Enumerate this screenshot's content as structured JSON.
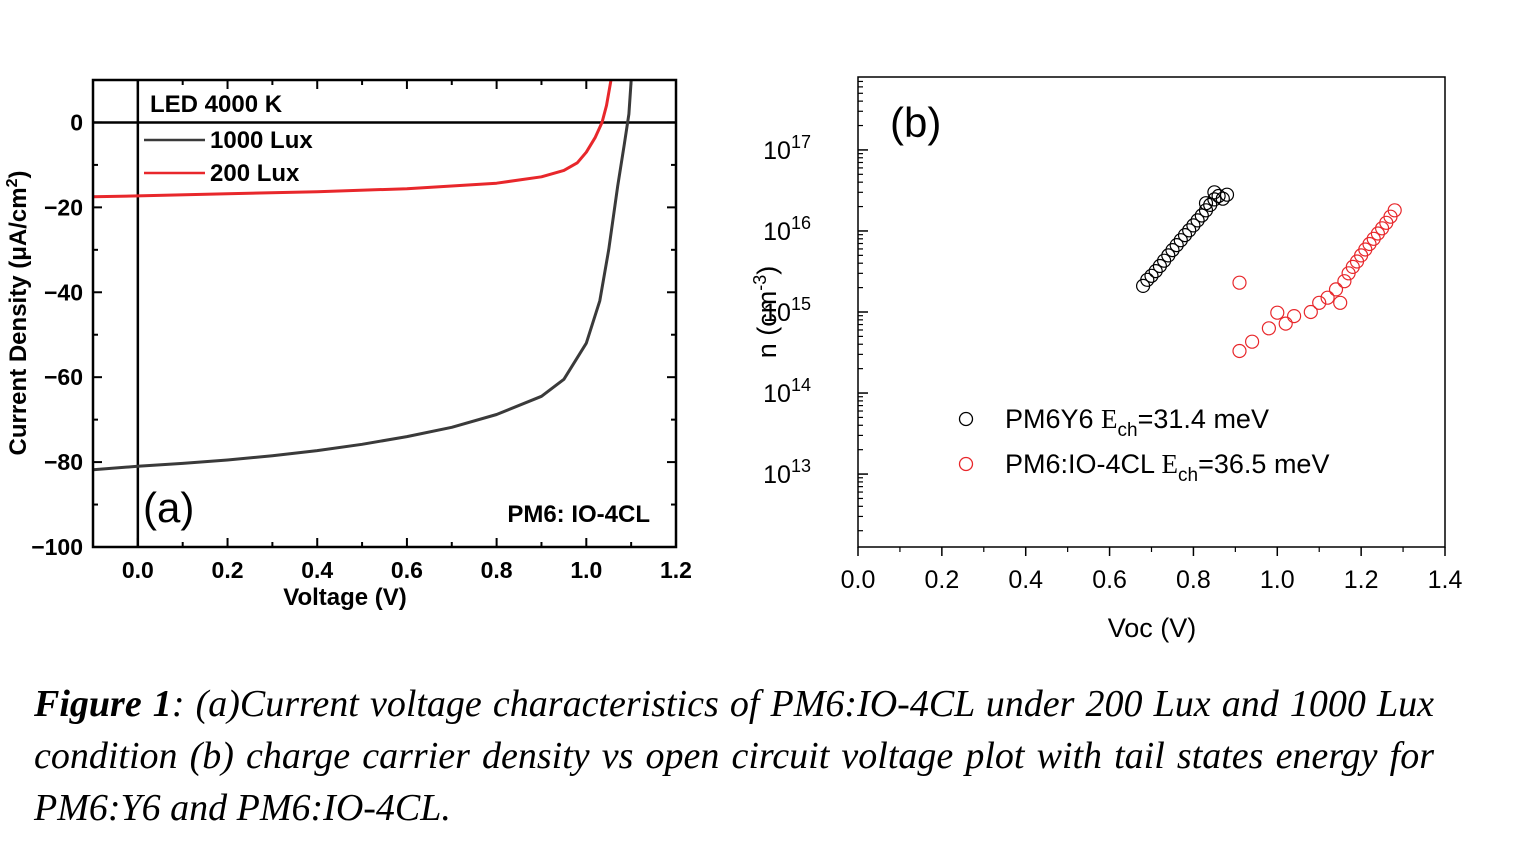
{
  "chart_data": [
    {
      "type": "line",
      "panel_label": "(a)",
      "xlabel": "Voltage (V)",
      "ylabel_prefix": "Current Density (",
      "ylabel_mu": "μ",
      "ylabel_unit": "A/cm",
      "ylabel_exp": "2",
      "ylabel_suffix": ")",
      "xlim": [
        -0.1,
        1.2
      ],
      "ylim": [
        -100,
        10
      ],
      "x_ticks": [
        "0.0",
        "0.2",
        "0.4",
        "0.6",
        "0.8",
        "1.0",
        "1.2"
      ],
      "y_ticks": [
        "0",
        "−20",
        "−40",
        "−60",
        "−80",
        "−100"
      ],
      "legend_title": "LED 4000 K",
      "annotation": "PM6: IO-4CL",
      "series": [
        {
          "name": "1000 Lux",
          "color": "#3a3a3a",
          "points": [
            [
              -0.1,
              -81.8
            ],
            [
              0.0,
              -81.0
            ],
            [
              0.1,
              -80.3
            ],
            [
              0.2,
              -79.5
            ],
            [
              0.3,
              -78.5
            ],
            [
              0.4,
              -77.3
            ],
            [
              0.5,
              -75.8
            ],
            [
              0.6,
              -74.0
            ],
            [
              0.7,
              -71.8
            ],
            [
              0.8,
              -68.8
            ],
            [
              0.9,
              -64.5
            ],
            [
              0.95,
              -60.5
            ],
            [
              1.0,
              -52.0
            ],
            [
              1.03,
              -42.0
            ],
            [
              1.05,
              -30.0
            ],
            [
              1.07,
              -15.0
            ],
            [
              1.085,
              -5.0
            ],
            [
              1.095,
              2.0
            ],
            [
              1.1,
              10.0
            ]
          ]
        },
        {
          "name": "200 Lux",
          "color": "#e8272b",
          "points": [
            [
              -0.1,
              -17.5
            ],
            [
              0.0,
              -17.3
            ],
            [
              0.2,
              -16.8
            ],
            [
              0.4,
              -16.3
            ],
            [
              0.6,
              -15.6
            ],
            [
              0.8,
              -14.3
            ],
            [
              0.9,
              -12.8
            ],
            [
              0.95,
              -11.3
            ],
            [
              0.98,
              -9.5
            ],
            [
              1.0,
              -7.0
            ],
            [
              1.02,
              -3.5
            ],
            [
              1.035,
              0.0
            ],
            [
              1.045,
              4.0
            ],
            [
              1.055,
              10.0
            ]
          ]
        }
      ]
    },
    {
      "type": "scatter",
      "panel_label": "(b)",
      "xlabel": "Voc (V)",
      "ylabel_prefix": "n (cm",
      "ylabel_exp": "-3",
      "ylabel_suffix": ")",
      "xlim": [
        0.0,
        1.4
      ],
      "ylog_exp_range": [
        12.1,
        17.9
      ],
      "y_scale": "log",
      "x_ticks": [
        "0.0",
        "0.2",
        "0.4",
        "0.6",
        "0.8",
        "1.0",
        "1.2",
        "1.4"
      ],
      "y_tick_exponents": [
        "13",
        "14",
        "15",
        "16",
        "17"
      ],
      "y_tick_base": "10",
      "series": [
        {
          "legend_name": "PM6Y6 ",
          "legend_E": "E",
          "legend_sub": "ch",
          "legend_value": "=31.4 meV",
          "color": "#000000",
          "points": [
            [
              0.68,
              2100000000000000.0
            ],
            [
              0.69,
              2500000000000000.0
            ],
            [
              0.7,
              2800000000000000.0
            ],
            [
              0.71,
              3200000000000000.0
            ],
            [
              0.72,
              3700000000000000.0
            ],
            [
              0.73,
              4300000000000000.0
            ],
            [
              0.74,
              5000000000000000.0
            ],
            [
              0.75,
              5800000000000000.0
            ],
            [
              0.76,
              6700000000000000.0
            ],
            [
              0.77,
              7700000000000000.0
            ],
            [
              0.78,
              8900000000000000.0
            ],
            [
              0.79,
              1.02e+16
            ],
            [
              0.8,
              1.17e+16
            ],
            [
              0.81,
              1.35e+16
            ],
            [
              0.82,
              1.55e+16
            ],
            [
              0.83,
              1.8e+16
            ],
            [
              0.84,
              2.1e+16
            ],
            [
              0.85,
              2.45e+16
            ],
            [
              0.86,
              2.7e+16
            ],
            [
              0.87,
              2.5e+16
            ],
            [
              0.88,
              2.8e+16
            ],
            [
              0.85,
              3e+16
            ],
            [
              0.83,
              2.2e+16
            ]
          ]
        },
        {
          "legend_name": "PM6:IO-4CL ",
          "legend_E": "E",
          "legend_sub": "ch",
          "legend_value": "=36.5 meV",
          "color": "#e8272b",
          "points": [
            [
              0.91,
              2300000000000000.0
            ],
            [
              0.91,
              330000000000000.0
            ],
            [
              0.94,
              430000000000000.0
            ],
            [
              0.98,
              630000000000000.0
            ],
            [
              1.0,
              980000000000000.0
            ],
            [
              1.02,
              720000000000000.0
            ],
            [
              1.04,
              890000000000000.0
            ],
            [
              1.08,
              1000000000000000.0
            ],
            [
              1.1,
              1300000000000000.0
            ],
            [
              1.12,
              1500000000000000.0
            ],
            [
              1.14,
              1900000000000000.0
            ],
            [
              1.15,
              1300000000000000.0
            ],
            [
              1.16,
              2400000000000000.0
            ],
            [
              1.17,
              3000000000000000.0
            ],
            [
              1.18,
              3600000000000000.0
            ],
            [
              1.19,
              4200000000000000.0
            ],
            [
              1.2,
              5000000000000000.0
            ],
            [
              1.21,
              5900000000000000.0
            ],
            [
              1.22,
              6900000000000000.0
            ],
            [
              1.23,
              8000000000000000.0
            ],
            [
              1.24,
              9300000000000000.0
            ],
            [
              1.25,
              1.08e+16
            ],
            [
              1.26,
              1.26e+16
            ],
            [
              1.27,
              1.5e+16
            ],
            [
              1.28,
              1.8e+16
            ]
          ]
        }
      ]
    }
  ],
  "caption": {
    "label": "Figure 1",
    "text": ": (a)Current voltage characteristics of PM6:IO-4CL under 200 Lux and 1000 Lux condition (b) charge carrier density vs open circuit voltage plot with tail states energy for PM6:Y6 and PM6:IO-4CL."
  }
}
